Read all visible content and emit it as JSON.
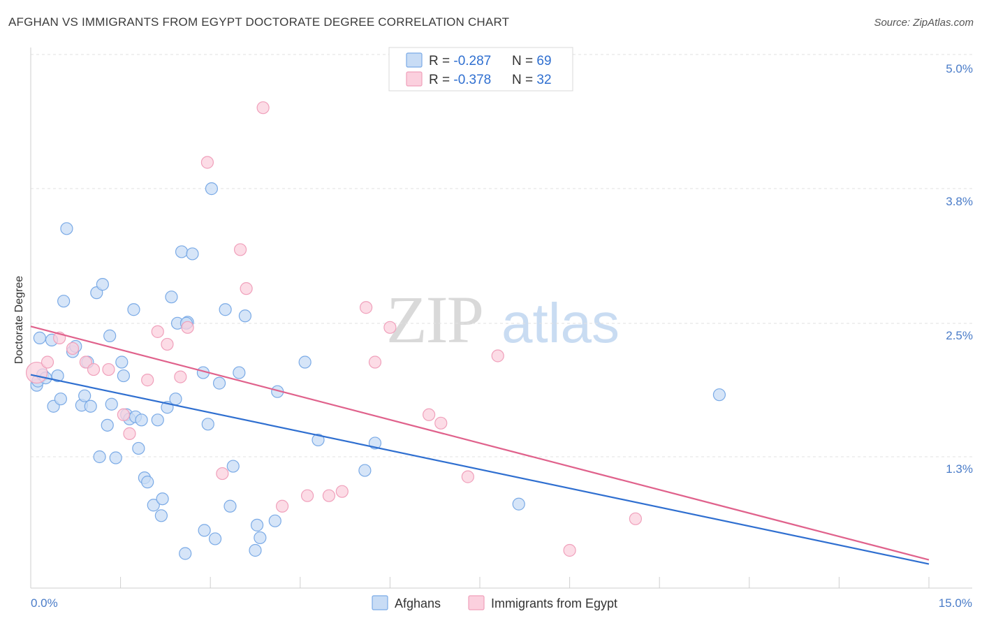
{
  "chart_data": {
    "type": "scatter",
    "title": "AFGHAN VS IMMIGRANTS FROM EGYPT DOCTORATE DEGREE CORRELATION CHART",
    "source": "Source: ZipAtlas.com",
    "ylabel": "Doctorate Degree",
    "xlabel": "",
    "xlim": [
      0,
      15
    ],
    "ylim": [
      0,
      5.2
    ],
    "x_tick_labels": [
      "0.0%",
      "15.0%"
    ],
    "y_ticks": [
      1.3,
      2.5,
      3.8,
      5.0
    ],
    "y_tick_labels": [
      "1.3%",
      "2.5%",
      "3.8%",
      "5.0%"
    ],
    "watermark": {
      "part1": "ZIP",
      "part2": "atlas"
    },
    "legend_top": {
      "rows": [
        {
          "r_label": "R = ",
          "r_value": "-0.287",
          "n_label": "N = ",
          "n_value": "69"
        },
        {
          "r_label": "R = ",
          "r_value": "-0.378",
          "n_label": "N = ",
          "n_value": "32"
        }
      ]
    },
    "series": [
      {
        "name": "Afghans",
        "color": "#7aaae6",
        "fill": "#c8dcf5",
        "line_color": "#2f6fd0",
        "trend": {
          "x0": 0,
          "y0": 2.08,
          "x1": 15,
          "y1": 0.28
        },
        "points": [
          {
            "x": 0.1,
            "y": 1.98
          },
          {
            "x": 0.12,
            "y": 2.02
          },
          {
            "x": 0.15,
            "y": 2.43
          },
          {
            "x": 0.2,
            "y": 2.08
          },
          {
            "x": 0.25,
            "y": 2.05
          },
          {
            "x": 0.35,
            "y": 2.41
          },
          {
            "x": 0.38,
            "y": 1.78
          },
          {
            "x": 0.45,
            "y": 2.07
          },
          {
            "x": 0.5,
            "y": 1.85
          },
          {
            "x": 0.55,
            "y": 2.78
          },
          {
            "x": 0.6,
            "y": 3.47
          },
          {
            "x": 0.7,
            "y": 2.3
          },
          {
            "x": 0.75,
            "y": 2.35
          },
          {
            "x": 0.85,
            "y": 1.79
          },
          {
            "x": 0.9,
            "y": 1.88
          },
          {
            "x": 0.95,
            "y": 2.2
          },
          {
            "x": 1.0,
            "y": 1.78
          },
          {
            "x": 1.1,
            "y": 2.86
          },
          {
            "x": 1.15,
            "y": 1.3
          },
          {
            "x": 1.2,
            "y": 2.94
          },
          {
            "x": 1.28,
            "y": 1.6
          },
          {
            "x": 1.32,
            "y": 2.45
          },
          {
            "x": 1.35,
            "y": 1.8
          },
          {
            "x": 1.42,
            "y": 1.29
          },
          {
            "x": 1.52,
            "y": 2.2
          },
          {
            "x": 1.55,
            "y": 2.07
          },
          {
            "x": 1.6,
            "y": 1.7
          },
          {
            "x": 1.65,
            "y": 1.66
          },
          {
            "x": 1.72,
            "y": 2.7
          },
          {
            "x": 1.75,
            "y": 1.68
          },
          {
            "x": 1.8,
            "y": 1.38
          },
          {
            "x": 1.85,
            "y": 1.65
          },
          {
            "x": 1.9,
            "y": 1.1
          },
          {
            "x": 1.95,
            "y": 1.06
          },
          {
            "x": 2.05,
            "y": 0.84
          },
          {
            "x": 2.12,
            "y": 1.65
          },
          {
            "x": 2.18,
            "y": 0.74
          },
          {
            "x": 2.2,
            "y": 0.9
          },
          {
            "x": 2.28,
            "y": 1.77
          },
          {
            "x": 2.35,
            "y": 2.82
          },
          {
            "x": 2.42,
            "y": 1.85
          },
          {
            "x": 2.45,
            "y": 2.57
          },
          {
            "x": 2.52,
            "y": 3.25
          },
          {
            "x": 2.58,
            "y": 0.38
          },
          {
            "x": 2.62,
            "y": 2.58
          },
          {
            "x": 2.7,
            "y": 3.23
          },
          {
            "x": 2.88,
            "y": 2.1
          },
          {
            "x": 2.9,
            "y": 0.6
          },
          {
            "x": 2.96,
            "y": 1.61
          },
          {
            "x": 3.02,
            "y": 3.85
          },
          {
            "x": 3.08,
            "y": 0.52
          },
          {
            "x": 3.15,
            "y": 2.0
          },
          {
            "x": 3.25,
            "y": 2.7
          },
          {
            "x": 3.33,
            "y": 0.83
          },
          {
            "x": 3.38,
            "y": 1.21
          },
          {
            "x": 3.48,
            "y": 2.1
          },
          {
            "x": 3.58,
            "y": 2.64
          },
          {
            "x": 3.75,
            "y": 0.41
          },
          {
            "x": 3.78,
            "y": 0.65
          },
          {
            "x": 3.83,
            "y": 0.53
          },
          {
            "x": 4.08,
            "y": 0.69
          },
          {
            "x": 4.12,
            "y": 1.92
          },
          {
            "x": 4.58,
            "y": 2.2
          },
          {
            "x": 4.8,
            "y": 1.46
          },
          {
            "x": 5.58,
            "y": 1.17
          },
          {
            "x": 5.75,
            "y": 1.43
          },
          {
            "x": 8.15,
            "y": 0.85
          },
          {
            "x": 11.5,
            "y": 1.89
          },
          {
            "x": 2.6,
            "y": 2.57
          }
        ]
      },
      {
        "name": "Immigrants from Egypt",
        "color": "#f0a0bb",
        "fill": "#fbd0de",
        "line_color": "#e0628c",
        "trend": {
          "x0": 0,
          "y0": 2.54,
          "x1": 15,
          "y1": 0.32
        },
        "points": [
          {
            "x": 0.1,
            "y": 2.1,
            "r": 15
          },
          {
            "x": 0.28,
            "y": 2.2
          },
          {
            "x": 0.48,
            "y": 2.43
          },
          {
            "x": 0.7,
            "y": 2.33
          },
          {
            "x": 0.92,
            "y": 2.2
          },
          {
            "x": 1.05,
            "y": 2.13
          },
          {
            "x": 1.3,
            "y": 2.13
          },
          {
            "x": 1.55,
            "y": 1.7
          },
          {
            "x": 1.65,
            "y": 1.52
          },
          {
            "x": 1.95,
            "y": 2.03
          },
          {
            "x": 2.12,
            "y": 2.49
          },
          {
            "x": 2.28,
            "y": 2.37
          },
          {
            "x": 2.5,
            "y": 2.06
          },
          {
            "x": 2.62,
            "y": 2.53
          },
          {
            "x": 2.95,
            "y": 4.1
          },
          {
            "x": 3.2,
            "y": 1.14
          },
          {
            "x": 3.5,
            "y": 3.27
          },
          {
            "x": 3.6,
            "y": 2.9
          },
          {
            "x": 3.88,
            "y": 4.62
          },
          {
            "x": 4.2,
            "y": 0.83
          },
          {
            "x": 4.62,
            "y": 0.93
          },
          {
            "x": 4.98,
            "y": 0.93
          },
          {
            "x": 5.2,
            "y": 0.97
          },
          {
            "x": 5.6,
            "y": 2.72
          },
          {
            "x": 5.75,
            "y": 2.2
          },
          {
            "x": 6.0,
            "y": 2.53
          },
          {
            "x": 6.65,
            "y": 1.7
          },
          {
            "x": 6.85,
            "y": 1.62
          },
          {
            "x": 7.3,
            "y": 1.11
          },
          {
            "x": 7.8,
            "y": 2.26
          },
          {
            "x": 9.0,
            "y": 0.41
          },
          {
            "x": 10.1,
            "y": 0.71
          }
        ]
      }
    ]
  }
}
